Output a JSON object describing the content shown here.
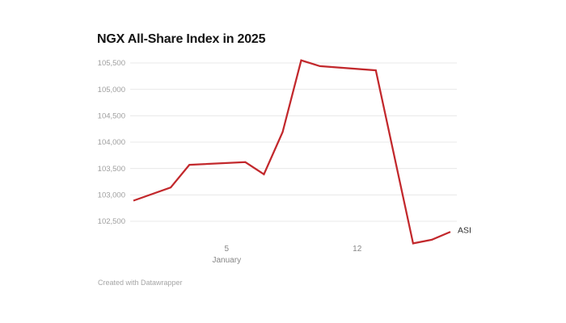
{
  "header": {
    "title": "NGX All-Share Index in 2025"
  },
  "footer": {
    "credit": "Created with Datawrapper"
  },
  "colors": {
    "line": "#c2282c",
    "grid": "#e8e8e8",
    "y_axis_text": "#9e9e9e",
    "x_axis_text": "#868686",
    "title_text": "#141414",
    "series_label_text": "#2e2e2e",
    "background": "#ffffff"
  },
  "chart_data": {
    "type": "line",
    "title": "NGX All-Share Index in 2025",
    "xlabel": "January",
    "ylabel": "",
    "legend_position": "end-of-line-label",
    "grid": "horizontal-only",
    "ylim": [
      102050,
      105600
    ],
    "x_axis": {
      "unit": "days (day 0 = Dec 31, weekends included in spacing)",
      "range_days": [
        0,
        17
      ],
      "ticks": [
        {
          "label": "5",
          "sublabel": "January",
          "day": 5
        },
        {
          "label": "12",
          "sublabel": "",
          "day": 12
        }
      ]
    },
    "y_axis": {
      "ticks": [
        102500,
        103000,
        103500,
        104000,
        104500,
        105000,
        105500
      ],
      "tick_labels": [
        "102,500",
        "103,000",
        "103,500",
        "104,000",
        "104,500",
        "105,000",
        "105,500"
      ]
    },
    "series": [
      {
        "name": "ASI",
        "points": [
          {
            "date": "Dec 31",
            "day": 0,
            "value": 102890
          },
          {
            "date": "Jan 2",
            "day": 2,
            "value": 103140
          },
          {
            "date": "Jan 3",
            "day": 3,
            "value": 103570
          },
          {
            "date": "Jan 6",
            "day": 6,
            "value": 103620
          },
          {
            "date": "Jan 7",
            "day": 7,
            "value": 103390
          },
          {
            "date": "Jan 8",
            "day": 8,
            "value": 104190
          },
          {
            "date": "Jan 9",
            "day": 9,
            "value": 105550
          },
          {
            "date": "Jan 10",
            "day": 10,
            "value": 105440
          },
          {
            "date": "Jan 13",
            "day": 13,
            "value": 105360
          },
          {
            "date": "Jan 15",
            "day": 15,
            "value": 102080
          },
          {
            "date": "Jan 16",
            "day": 16,
            "value": 102150
          },
          {
            "date": "Jan 17",
            "day": 17,
            "value": 102300
          }
        ]
      }
    ]
  }
}
